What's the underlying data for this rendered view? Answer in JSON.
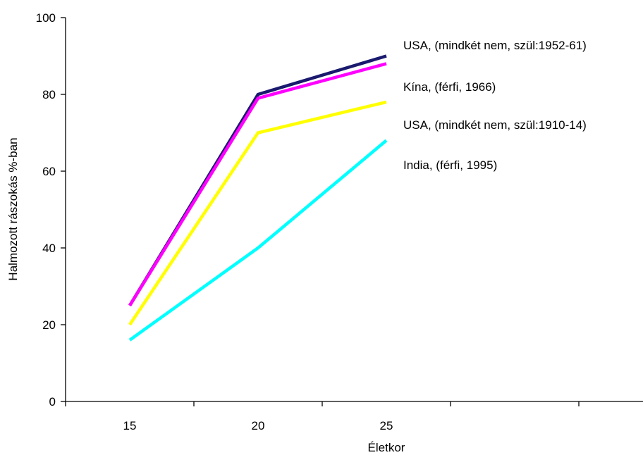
{
  "chart_data": {
    "type": "line",
    "x": [
      15,
      20,
      25
    ],
    "xlabel": "Életkor",
    "ylabel": "Halmozott rászokás %-ban",
    "xlim": [
      12.5,
      37.5
    ],
    "ylim": [
      0,
      100
    ],
    "x_tick_labels": [
      "15",
      "20",
      "25"
    ],
    "y_ticks": [
      0,
      20,
      40,
      60,
      80,
      100
    ],
    "y_tick_labels": [
      "0",
      "20",
      "40",
      "60",
      "80",
      "100"
    ],
    "grid": false,
    "legend": "right, beside line ends",
    "series": [
      {
        "name": "USA, (mindkét nem, szül:1952-61)",
        "values": [
          25,
          80,
          90
        ],
        "color": "#1a1a6e"
      },
      {
        "name": "Kína, (férfi, 1966)",
        "values": [
          25,
          79,
          88
        ],
        "color": "#ff00ff"
      },
      {
        "name": "USA, (mindkét nem, szül:1910-14)",
        "values": [
          20,
          70,
          78
        ],
        "color": "#ffff00"
      },
      {
        "name": "India, (férfi, 1995)",
        "values": [
          16,
          40,
          68
        ],
        "color": "#00ffff"
      }
    ]
  }
}
